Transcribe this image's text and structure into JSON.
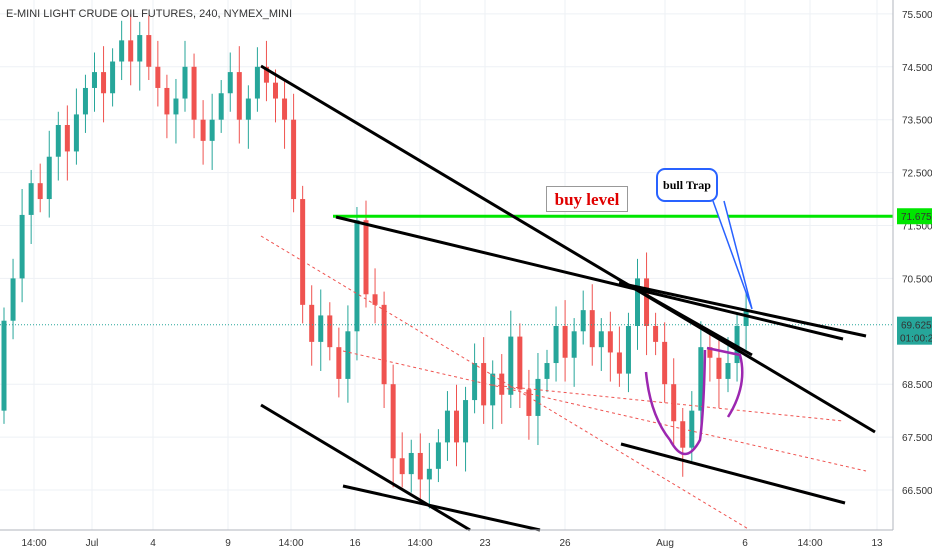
{
  "header": {
    "title": "E-MINI LIGHT CRUDE OIL FUTURES, 240, NYMEX_MINI"
  },
  "annotations": {
    "buy_level": "buy level",
    "bull_trap": "bull Trap"
  },
  "colors": {
    "up": "#26a69a",
    "down": "#ef5350",
    "trend": "#000000",
    "buy_line": "#00e600",
    "dashed": "#ef5350",
    "purple": "#9c27b0",
    "callout": "#2962ff",
    "current_price": "#26a69a"
  },
  "chart_data": {
    "type": "candlestick",
    "symbol": "E-MINI LIGHT CRUDE OIL FUTURES",
    "interval": "240",
    "exchange": "NYMEX_MINI",
    "x_ticks": [
      "14:00",
      "Jul",
      "4",
      "9",
      "14:00",
      "16",
      "14:00",
      "23",
      "26",
      "Aug",
      "6",
      "14:00",
      "13"
    ],
    "y_ticks": [
      "75.500",
      "74.500",
      "73.500",
      "72.500",
      "71.500",
      "70.500",
      "68.500",
      "67.500",
      "66.500"
    ],
    "ylim": [
      65.65,
      75.9
    ],
    "buy_level": 71.675,
    "buy_level_label": "71.675",
    "current_price": 69.625,
    "current_price_label": "69.625",
    "countdown": "01:00:23",
    "candles": [
      [
        68.0,
        69.7
      ],
      [
        69.7,
        70.5
      ],
      [
        70.5,
        71.7
      ],
      [
        71.7,
        72.3
      ],
      [
        72.3,
        72.0
      ],
      [
        72.0,
        72.8
      ],
      [
        72.8,
        73.4
      ],
      [
        73.4,
        72.9
      ],
      [
        72.9,
        73.6
      ],
      [
        73.6,
        74.1
      ],
      [
        74.1,
        74.4
      ],
      [
        74.4,
        74.0
      ],
      [
        74.0,
        74.6
      ],
      [
        74.6,
        75.0
      ],
      [
        75.0,
        74.6
      ],
      [
        74.6,
        75.1
      ],
      [
        75.1,
        74.5
      ],
      [
        74.5,
        74.1
      ],
      [
        74.1,
        73.6
      ],
      [
        73.6,
        73.9
      ],
      [
        73.9,
        74.5
      ],
      [
        74.5,
        73.5
      ],
      [
        73.5,
        73.1
      ],
      [
        73.1,
        73.5
      ],
      [
        73.5,
        74.0
      ],
      [
        74.0,
        74.4
      ],
      [
        74.4,
        73.5
      ],
      [
        73.5,
        73.9
      ],
      [
        73.9,
        74.5
      ],
      [
        74.5,
        74.2
      ],
      [
        74.2,
        73.9
      ],
      [
        73.9,
        73.5
      ],
      [
        73.5,
        72.0
      ],
      [
        72.0,
        70.0
      ],
      [
        70.0,
        69.3
      ],
      [
        69.3,
        69.8
      ],
      [
        69.8,
        69.2
      ],
      [
        69.2,
        68.6
      ],
      [
        68.6,
        69.5
      ],
      [
        69.5,
        71.6
      ],
      [
        71.6,
        70.2
      ],
      [
        70.2,
        70.0
      ],
      [
        70.0,
        68.5
      ],
      [
        68.5,
        67.1
      ],
      [
        67.1,
        66.8
      ],
      [
        66.8,
        67.2
      ],
      [
        67.2,
        66.7
      ],
      [
        66.7,
        66.9
      ],
      [
        66.9,
        67.4
      ],
      [
        67.4,
        68.0
      ],
      [
        68.0,
        67.4
      ],
      [
        67.4,
        68.2
      ],
      [
        68.2,
        68.9
      ],
      [
        68.9,
        68.1
      ],
      [
        68.1,
        68.7
      ],
      [
        68.7,
        68.3
      ],
      [
        68.3,
        69.4
      ],
      [
        69.4,
        68.4
      ],
      [
        68.4,
        67.9
      ],
      [
        67.9,
        68.6
      ],
      [
        68.6,
        68.9
      ],
      [
        68.9,
        69.6
      ],
      [
        69.6,
        69.0
      ],
      [
        69.0,
        69.5
      ],
      [
        69.5,
        69.9
      ],
      [
        69.9,
        69.2
      ],
      [
        69.2,
        69.5
      ],
      [
        69.5,
        69.1
      ],
      [
        69.1,
        68.7
      ],
      [
        68.7,
        69.6
      ],
      [
        69.6,
        70.5
      ],
      [
        70.5,
        69.6
      ],
      [
        69.6,
        69.3
      ],
      [
        69.3,
        68.5
      ],
      [
        68.5,
        67.8
      ],
      [
        67.8,
        67.3
      ],
      [
        67.3,
        68.0
      ],
      [
        68.0,
        69.2
      ],
      [
        69.2,
        69.0
      ],
      [
        69.0,
        68.6
      ],
      [
        68.6,
        68.9
      ],
      [
        68.9,
        69.6
      ],
      [
        69.6,
        69.9
      ]
    ]
  }
}
